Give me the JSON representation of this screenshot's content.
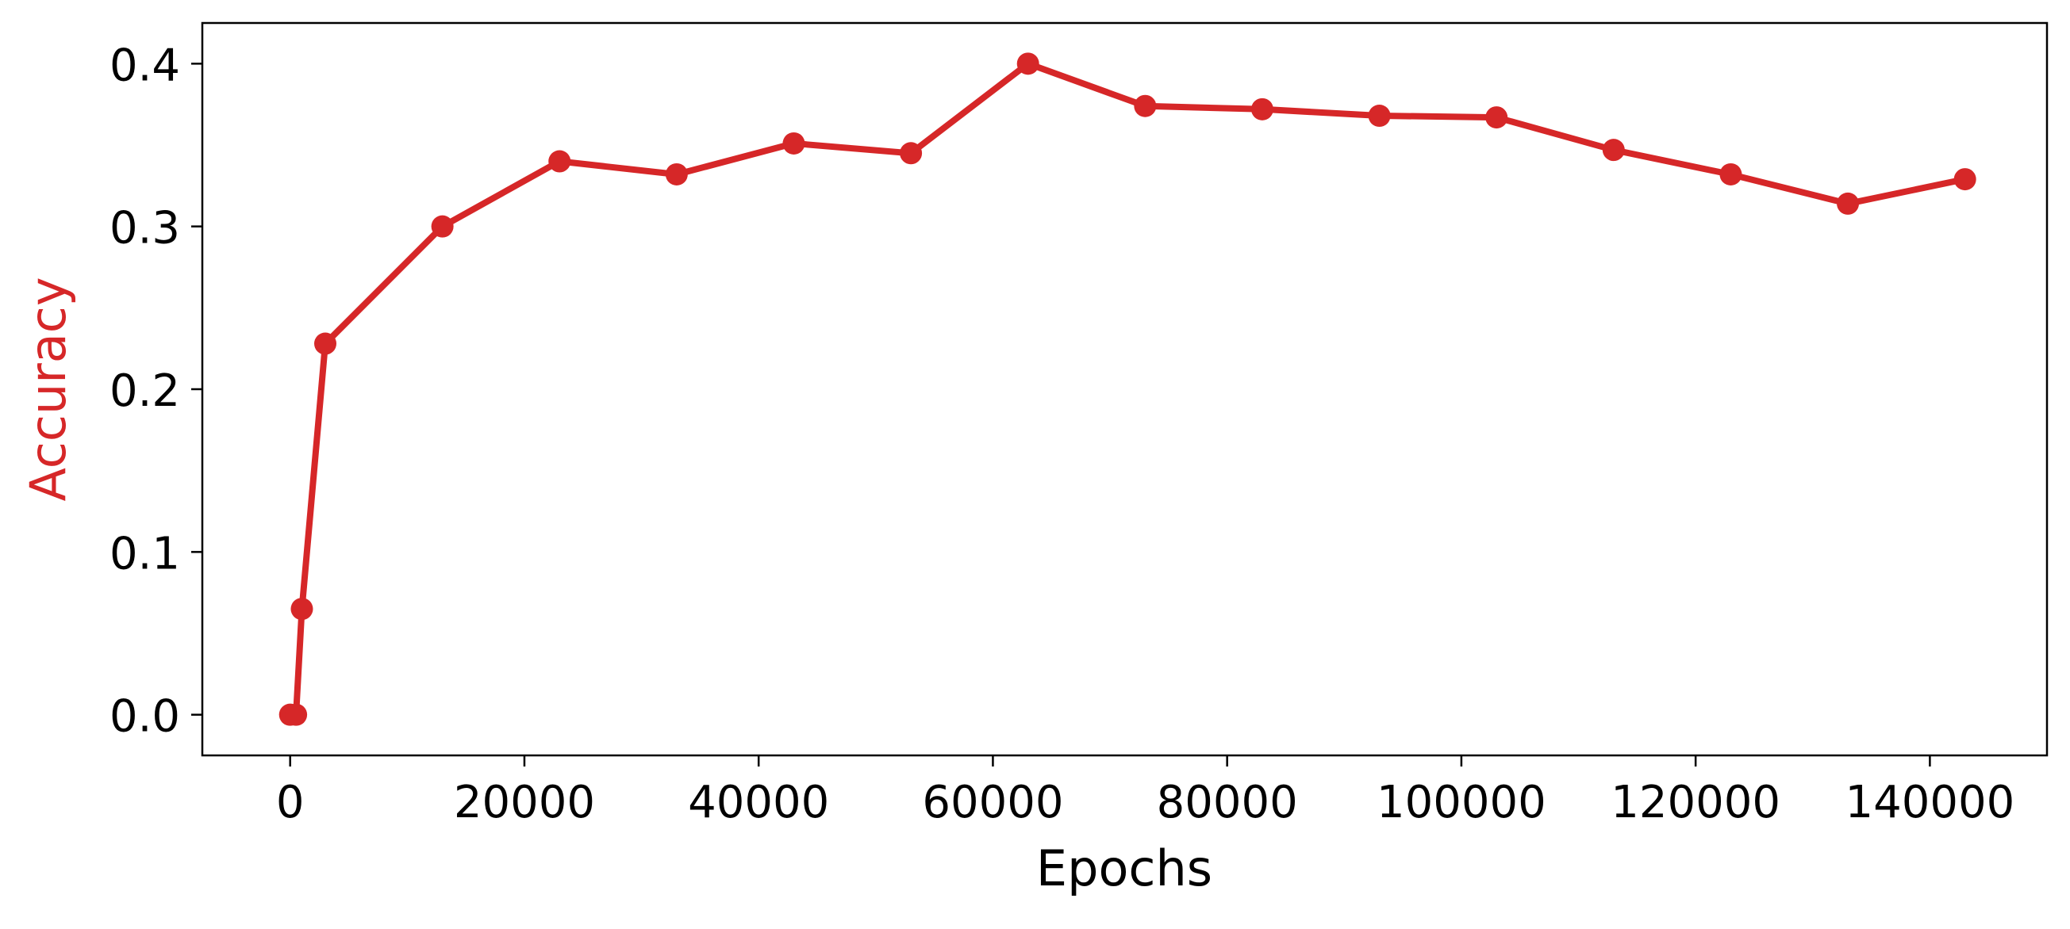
{
  "chart_data": {
    "type": "line",
    "title": "",
    "xlabel": "Epochs",
    "ylabel": "Accuracy",
    "xlim": [
      -7500,
      150000
    ],
    "ylim": [
      -0.025,
      0.425
    ],
    "xticks": [
      0,
      20000,
      40000,
      60000,
      80000,
      100000,
      120000,
      140000
    ],
    "xtick_labels": [
      "0",
      "20000",
      "40000",
      "60000",
      "80000",
      "100000",
      "120000",
      "140000"
    ],
    "yticks": [
      0.0,
      0.1,
      0.2,
      0.3,
      0.4
    ],
    "ytick_labels": [
      "0.0",
      "0.1",
      "0.2",
      "0.3",
      "0.4"
    ],
    "grid": false,
    "legend": "none",
    "series": [
      {
        "color": "#d62728",
        "marker": "circle",
        "x": [
          0,
          500,
          1000,
          3000,
          13000,
          23000,
          33000,
          43000,
          53000,
          63000,
          73000,
          83000,
          93000,
          103000,
          113000,
          123000,
          133000,
          143000
        ],
        "y": [
          0.0,
          0.0,
          0.065,
          0.228,
          0.3,
          0.34,
          0.332,
          0.351,
          0.345,
          0.4,
          0.374,
          0.372,
          0.368,
          0.367,
          0.347,
          0.332,
          0.314,
          0.329
        ]
      }
    ]
  }
}
